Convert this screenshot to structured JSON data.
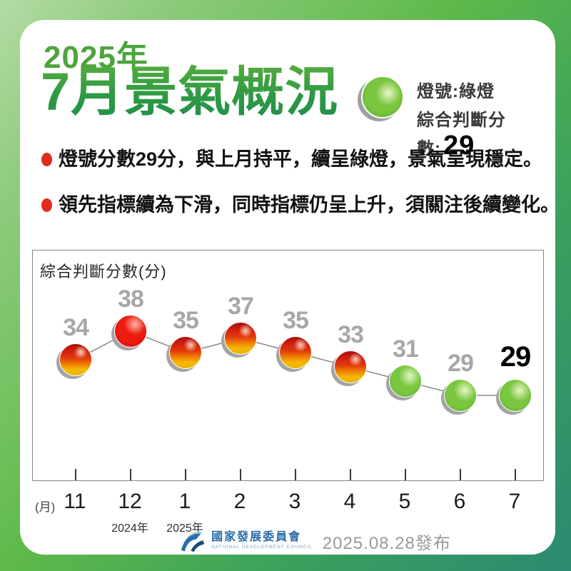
{
  "header": {
    "year_label": "2025年",
    "title": "7月景氣概況",
    "signal": {
      "light_label": "燈號:綠燈",
      "score_label": "綜合判斷分數:",
      "score_value": "29",
      "light_name": "green-light"
    }
  },
  "bullets": [
    {
      "text": "燈號分數29分，與上月持平，續呈綠燈，景氣呈現穩定。"
    },
    {
      "text": "領先指標續為下滑，同時指標仍呈上升，須關注後續變化。"
    }
  ],
  "chart_data": {
    "type": "line",
    "title": "綜合判斷分數(分)",
    "x_axis_unit": "(月)",
    "categories": [
      "11",
      "12",
      "1",
      "2",
      "3",
      "4",
      "5",
      "6",
      "7"
    ],
    "values": [
      34,
      38,
      35,
      37,
      35,
      33,
      31,
      29,
      29
    ],
    "point_lights": [
      "yellow-red",
      "red",
      "yellow-red",
      "yellow-red",
      "yellow-red",
      "yellow-red",
      "green",
      "green",
      "green"
    ],
    "year_markers": [
      {
        "category_index": 1,
        "label": "2024年"
      },
      {
        "category_index": 2,
        "label": "2025年"
      }
    ],
    "current_point_index": 8,
    "ylim": [
      27,
      40
    ],
    "grid": false,
    "legend": "none"
  },
  "footer": {
    "org_name": "國家發展委員會",
    "org_name_en": "NATIONAL DEVELOPMENT COUNCIL",
    "publish_date": "2025.08.28發布"
  },
  "colors": {
    "background_top_left": "#b4dba5",
    "background_bottom_right": "#2b8a72",
    "title_green_top": "#58ad3e",
    "title_green_bottom": "#1f8e49",
    "year_green": "#4ca43c",
    "green_light": "#74c23e",
    "red_light": "#e5170d",
    "yellow_red_light_top": "#cf1c10",
    "yellow_red_light_bottom": "#f4ba00",
    "bullet_red": "#e02b1d",
    "point_label_gray": "#a7a7a7",
    "current_label_black": "#000000",
    "ndc_blue": "#2c6da9",
    "date_gray": "#9d9896"
  }
}
